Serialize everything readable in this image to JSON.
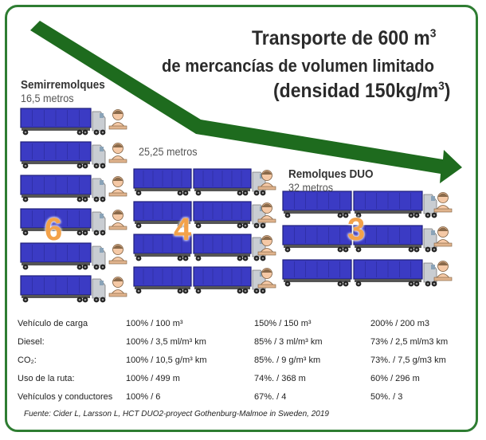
{
  "title": {
    "line1": "Transporte de 600 m",
    "line1_sup": "3",
    "line2": "de mercancías de volumen limitado",
    "line3": "(densidad 150kg/m",
    "line3_sup": "3",
    "line3_end": ")"
  },
  "groups": [
    {
      "name": "Semirremolques",
      "length": "16,5 metros",
      "count": "6"
    },
    {
      "name": "",
      "length": "25,25 metros",
      "count": "4"
    },
    {
      "name": "Remolques DUO",
      "length": "32 metros",
      "count": "3"
    }
  ],
  "table": {
    "rows": [
      {
        "label": "Vehículo de carga",
        "v1": "100% / 100 m³",
        "v2": "150% / 150 m³",
        "v3": "200% / 200 m3"
      },
      {
        "label": "Diesel:",
        "v1": "100% / 3,5 ml/m³ km",
        "v2": "85%   / 3 ml/m³ km",
        "v3": "73%   / 2,5 ml/m3 km"
      },
      {
        "label": "CO₂:",
        "v1": "100% / 10,5 g/m³ km",
        "v2": "85%.  / 9 g/m³ km",
        "v3": "73%.  / 7,5 g/m3 km"
      },
      {
        "label": "Uso de la ruta:",
        "v1": "100% / 499 m",
        "v2": "74%.  / 368 m",
        "v3": "60%   / 296 m"
      },
      {
        "label": "Vehículos y conductores",
        "v1": "100% / 6",
        "v2": "67%.  / 4",
        "v3": "50%.  / 3"
      }
    ]
  },
  "source": "Fuente: Cider L, Larsson L, HCT DUO2-proyect Gothenburg-Malmoe in Sweden, 2019",
  "colors": {
    "arrow": "#1e6b1e",
    "frame": "#2e7d32",
    "trailer": "#3b3bc4",
    "trailer_dark": "#1f1f7a",
    "cab": "#c9cdd2",
    "count": "#f3a24a",
    "driver": "#f5c9a6"
  },
  "icons": [
    "trend-down-arrow-icon",
    "truck-icon",
    "driver-icon"
  ]
}
